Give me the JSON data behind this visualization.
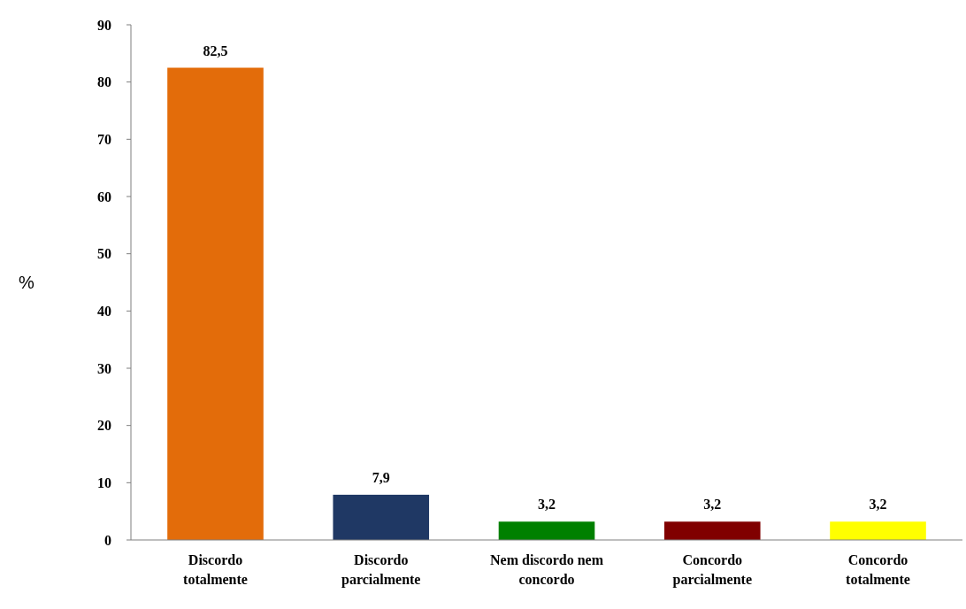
{
  "chart_data": {
    "type": "bar",
    "ylabel": "%",
    "categories": [
      "Discordo totalmente",
      "Discordo parcialmente",
      "Nem discordo nem concordo",
      "Concordo parcialmente",
      "Concordo totalmente"
    ],
    "values": [
      82.5,
      7.9,
      3.2,
      3.2,
      3.2
    ],
    "colors": [
      "#e36c0a",
      "#1f3864",
      "#008000",
      "#800000",
      "#ffff00"
    ],
    "value_labels": [
      "82,5",
      "7,9",
      "3,2",
      "3,2",
      "3,2"
    ],
    "ylim": [
      0,
      90
    ],
    "yticks": [
      0,
      10,
      20,
      30,
      40,
      50,
      60,
      70,
      80,
      90
    ],
    "grid": false
  }
}
